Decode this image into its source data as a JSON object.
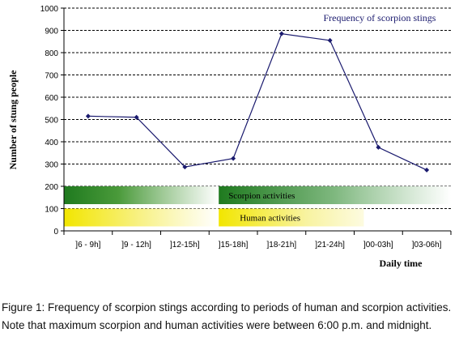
{
  "chart_data": {
    "type": "line",
    "title": "Frequency of scorpion stings",
    "xlabel": "Daily time",
    "ylabel": "Number of stung people",
    "categories": [
      "]6 - 9h]",
      "]9 - 12h]",
      "]12-15h]",
      "]15-18h]",
      "]18-21h]",
      "]21-24h]",
      "]00-03h]",
      "]03-06h]"
    ],
    "series": [
      {
        "values": [
          515,
          510,
          287,
          325,
          885,
          855,
          375,
          273
        ]
      }
    ],
    "ylim": [
      0,
      1000
    ],
    "yticks": [
      0,
      100,
      200,
      300,
      400,
      500,
      600,
      700,
      800,
      900,
      1000
    ],
    "grid": true,
    "bands": [
      {
        "label": "Scorpion activities",
        "color": "#1f7a1f",
        "segments": [
          [
            0,
            3.2
          ],
          [
            3.2,
            8
          ]
        ]
      },
      {
        "label": "Human activities",
        "color": "#f2e600",
        "segments": [
          [
            0,
            3.2
          ],
          [
            3.2,
            6.2
          ]
        ]
      }
    ],
    "line_color": "#1a1a6e"
  },
  "caption": "Figure 1: Frequency of scorpion stings according to periods of human and scorpion activities. Note that maximum scorpion and human activities were between 6:00 p.m. and midnight."
}
